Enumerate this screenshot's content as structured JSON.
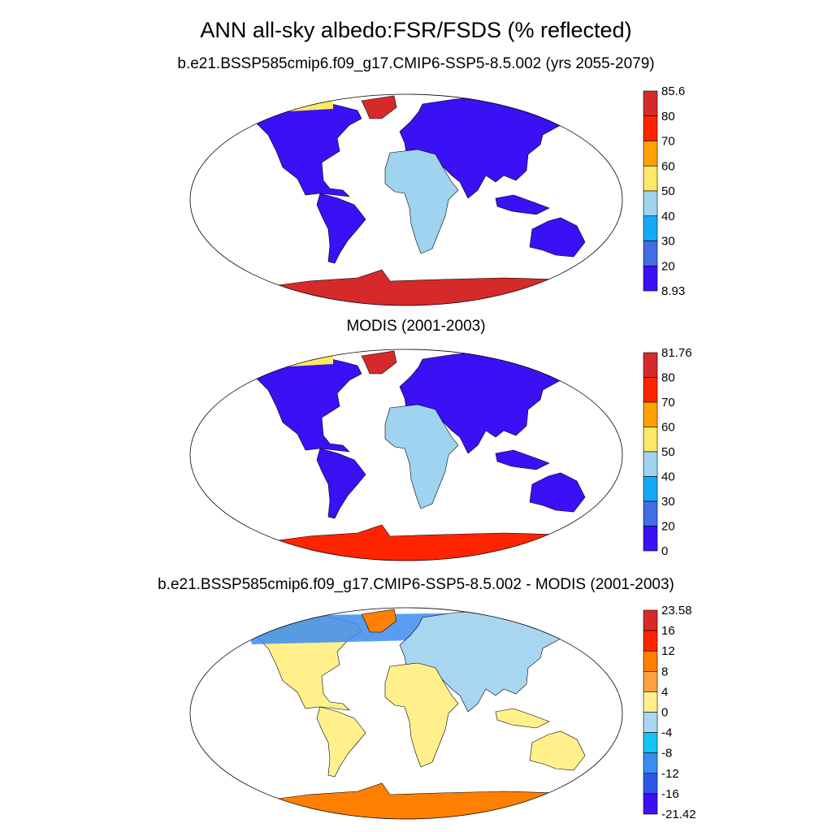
{
  "title": "ANN all-sky albedo:FSR/FSDS (% reflected)",
  "panels": [
    {
      "title": "b.e21.BSSP585cmip6.f09_g17.CMIP6-SSP5-8.5.002 (yrs 2055-2079)",
      "colorbar": {
        "labels": [
          "85.6",
          "80",
          "70",
          "60",
          "50",
          "40",
          "30",
          "20",
          "8.93"
        ],
        "colors": [
          "#d62a2a",
          "#ff2400",
          "#ffa200",
          "#ffe866",
          "#9fd3f0",
          "#13aaf5",
          "#436de6",
          "#3a10f5"
        ]
      }
    },
    {
      "title": "MODIS (2001-2003)",
      "colorbar": {
        "labels": [
          "81.76",
          "80",
          "70",
          "60",
          "50",
          "40",
          "30",
          "20",
          "0"
        ],
        "colors": [
          "#d62a2a",
          "#ff2400",
          "#ffa200",
          "#ffe866",
          "#9fd3f0",
          "#13aaf5",
          "#436de6",
          "#3a10f5"
        ]
      }
    },
    {
      "title": "b.e21.BSSP585cmip6.f09_g17.CMIP6-SSP5-8.5.002 - MODIS (2001-2003)",
      "colorbar": {
        "labels": [
          "23.58",
          "16",
          "12",
          "8",
          "4",
          "0",
          "-4",
          "-8",
          "-12",
          "-16",
          "-21.42"
        ],
        "colors": [
          "#d62a2a",
          "#ff2400",
          "#ff7f00",
          "#ffa040",
          "#fff08c",
          "#a8d6f0",
          "#13c3f5",
          "#3b8cf0",
          "#2f57e6",
          "#3a10f5"
        ]
      }
    }
  ]
}
